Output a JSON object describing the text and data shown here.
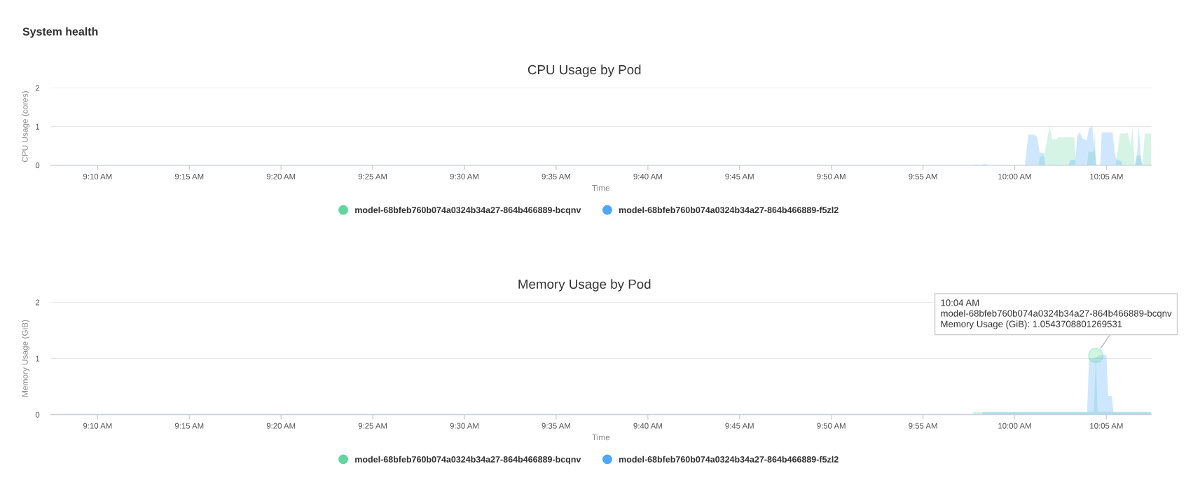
{
  "chart_data": [
    {
      "type": "area",
      "title": "CPU Usage by Pod",
      "xlabel": "Time",
      "ylabel": "CPU Usage (cores)",
      "annotations": [
        "System health"
      ],
      "xlim": [
        9.1238,
        10.1242
      ],
      "xticks": [
        {
          "value": 9.16667,
          "label": "9:10 AM"
        },
        {
          "value": 9.25,
          "label": "9:15 AM"
        },
        {
          "value": 9.33333,
          "label": "9:20 AM"
        },
        {
          "value": 9.41667,
          "label": "9:25 AM"
        },
        {
          "value": 9.5,
          "label": "9:30 AM"
        },
        {
          "value": 9.58333,
          "label": "9:35 AM"
        },
        {
          "value": 9.66667,
          "label": "9:40 AM"
        },
        {
          "value": 9.75,
          "label": "9:45 AM"
        },
        {
          "value": 9.83333,
          "label": "9:50 AM"
        },
        {
          "value": 9.91667,
          "label": "9:55 AM"
        },
        {
          "value": 10.0,
          "label": "10:00 AM"
        },
        {
          "value": 10.08333,
          "label": "10:05 AM"
        }
      ],
      "ylim": [
        0,
        2
      ],
      "yticks": [
        0,
        1,
        2
      ],
      "grid": "y",
      "legend": "bottom",
      "series": [
        {
          "name": "model-68bfeb760b074a0324b34a27-864b466889-bcqnv",
          "color": "#62d69e",
          "x": [
            9.9611,
            9.9628,
            9.9654,
            9.9671,
            10.0214,
            10.0231,
            10.0265,
            10.0291,
            10.0316,
            10.0342,
            10.038,
            10.0395,
            10.0541,
            10.0556,
            10.0658,
            10.0669,
            10.0718,
            10.0729,
            10.0739,
            10.0915,
            10.0925,
            10.0957,
            10.1017,
            10.1028,
            10.1053,
            10.1071,
            10.109,
            10.1103,
            10.1139,
            10.116,
            10.1182,
            10.1241
          ],
          "values": [
            0,
            0.02,
            0.02,
            0,
            0,
            0.23,
            0.23,
            0.6,
            1.0,
            0.67,
            0.67,
            0.72,
            0.72,
            0,
            0,
            0.35,
            0.35,
            0.93,
            0,
            0,
            0.15,
            0.82,
            0.82,
            0.85,
            0.5,
            1.0,
            0,
            0.25,
            0.25,
            0,
            0.82,
            0.82
          ]
        },
        {
          "name": "model-68bfeb760b074a0324b34a27-864b466889-f5zl2",
          "color": "#4da8fa",
          "x": [
            9.9703,
            9.9714,
            9.9735,
            9.975,
            10.0092,
            10.0124,
            10.0188,
            10.0205,
            10.0226,
            10.0263,
            10.0278,
            10.0487,
            10.0509,
            10.0551,
            10.0568,
            10.059,
            10.0615,
            10.0654,
            10.0675,
            10.0705,
            10.0722,
            10.0744,
            10.0776,
            10.0791,
            10.0889,
            10.091,
            10.0925,
            10.0968,
            10.0983,
            10.1096,
            10.1111,
            10.1128,
            10.1145,
            10.116,
            10.1241
          ],
          "values": [
            0,
            0.03,
            0.03,
            0.01,
            0.01,
            0.8,
            0.78,
            0.72,
            0.33,
            0.32,
            0,
            0,
            0.14,
            0.14,
            0.75,
            0.86,
            0.7,
            0.64,
            0.95,
            1.0,
            0.5,
            0,
            0,
            0.85,
            0.85,
            0.3,
            0.15,
            0.1,
            0,
            0,
            0.25,
            1.0,
            0.25,
            0,
            0
          ]
        }
      ]
    },
    {
      "type": "area",
      "title": "Memory Usage by Pod",
      "xlabel": "Time",
      "ylabel": "Memory Usage (GiB)",
      "annotations": [
        {
          "text": "10:04 AM\nmodel-68bfeb760b074a0324b34a27-864b466889-bcqnv\nMemory Usage (GiB): 1.0543708801269531",
          "x": 10.0737,
          "y": 1.0543708801269531
        }
      ],
      "xlim": [
        9.1238,
        10.1242
      ],
      "xticks": [
        {
          "value": 9.16667,
          "label": "9:10 AM"
        },
        {
          "value": 9.25,
          "label": "9:15 AM"
        },
        {
          "value": 9.33333,
          "label": "9:20 AM"
        },
        {
          "value": 9.41667,
          "label": "9:25 AM"
        },
        {
          "value": 9.5,
          "label": "9:30 AM"
        },
        {
          "value": 9.58333,
          "label": "9:35 AM"
        },
        {
          "value": 9.66667,
          "label": "9:40 AM"
        },
        {
          "value": 9.75,
          "label": "9:45 AM"
        },
        {
          "value": 9.83333,
          "label": "9:50 AM"
        },
        {
          "value": 9.91667,
          "label": "9:55 AM"
        },
        {
          "value": 10.0,
          "label": "10:00 AM"
        },
        {
          "value": 10.08333,
          "label": "10:05 AM"
        }
      ],
      "ylim": [
        0,
        2
      ],
      "yticks": [
        0,
        1,
        2
      ],
      "grid": "y",
      "legend": "bottom",
      "series": [
        {
          "name": "model-68bfeb760b074a0324b34a27-864b466889-bcqnv",
          "color": "#62d69e",
          "x": [
            9.9622,
            10.0718,
            10.0737,
            10.0754,
            10.1241
          ],
          "values": [
            0.05,
            0.05,
            1.0543708801269531,
            0.05,
            0.05
          ]
        },
        {
          "name": "model-68bfeb760b074a0324b34a27-864b466889-f5zl2",
          "color": "#4da8fa",
          "x": [
            9.9707,
            10.0658,
            10.0675,
            10.0722,
            10.0776,
            10.0833,
            10.085,
            10.0883,
            10.0897,
            10.1241
          ],
          "values": [
            0.04,
            0.04,
            1.0,
            1.0,
            1.06,
            1.06,
            0.33,
            0.33,
            0.04,
            0.04
          ]
        }
      ]
    }
  ]
}
